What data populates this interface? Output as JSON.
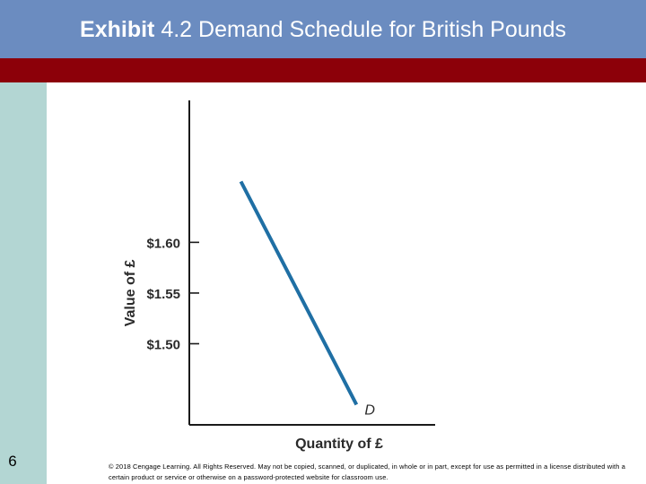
{
  "slide": {
    "title_bold": "Exhibit",
    "title_rest": " 4.2 Demand Schedule for British Pounds",
    "number": "6",
    "copyright": "© 2018 Cengage Learning. All Rights Reserved. May not be copied, scanned, or duplicated, in whole or in part, except for use as permitted in a license distributed with a certain product or service or otherwise on a password-protected website for classroom use.",
    "colors": {
      "title_bar": "#6b8cc0",
      "accent_bar": "#8c0009",
      "side_bar": "#b3d6d3",
      "curve": "#1f6fa4"
    }
  },
  "chart_data": {
    "type": "line",
    "title": "",
    "xlabel": "Quantity of £",
    "ylabel": "Value of £",
    "y_ticks": [
      1.6,
      1.55,
      1.5
    ],
    "y_tick_labels": [
      "$1.60",
      "$1.55",
      "$1.50"
    ],
    "ylim": [
      1.42,
      1.74
    ],
    "xlim": [
      0,
      10
    ],
    "grid": false,
    "series": [
      {
        "name": "D",
        "x": [
          2.1,
          6.8
        ],
        "y": [
          1.66,
          1.44
        ]
      }
    ]
  }
}
